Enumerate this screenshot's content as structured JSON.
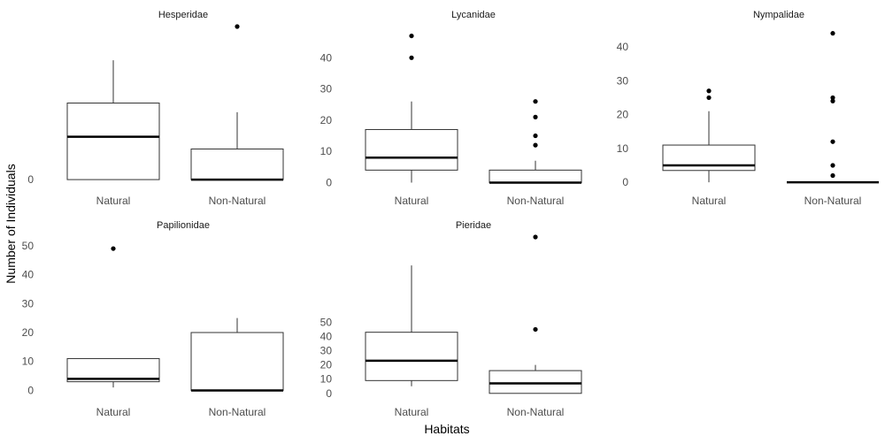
{
  "chart_data": {
    "type": "boxplot",
    "xlabel": "Habitats",
    "ylabel": "Number of Individuals",
    "panels": [
      {
        "title": "Hesperidae",
        "yticks": [
          0
        ],
        "ylim": [
          -2,
          50
        ],
        "categories": [
          "Natural",
          "Non-Natural"
        ],
        "boxes": [
          {
            "category": "Natural",
            "lower_whisker": 0,
            "q1": 0,
            "median": 14,
            "q3": 25,
            "upper_whisker": 39,
            "outliers": []
          },
          {
            "category": "Non-Natural",
            "lower_whisker": 0,
            "q1": 0,
            "median": 0,
            "q3": 10,
            "upper_whisker": 22,
            "outliers": [
              50
            ]
          }
        ]
      },
      {
        "title": "Lycanidae",
        "yticks": [
          0,
          10,
          20,
          30,
          40
        ],
        "ylim": [
          -1,
          50
        ],
        "categories": [
          "Natural",
          "Non-Natural"
        ],
        "boxes": [
          {
            "category": "Natural",
            "lower_whisker": 0,
            "q1": 4,
            "median": 8,
            "q3": 17,
            "upper_whisker": 26,
            "outliers": [
              40,
              47
            ]
          },
          {
            "category": "Non-Natural",
            "lower_whisker": 0,
            "q1": 0,
            "median": 0,
            "q3": 4,
            "upper_whisker": 7,
            "outliers": [
              12,
              15,
              21,
              26
            ]
          }
        ]
      },
      {
        "title": "Nympalidae",
        "yticks": [
          0,
          10,
          20,
          30,
          40
        ],
        "ylim": [
          -1,
          46
        ],
        "categories": [
          "Natural",
          "Non-Natural"
        ],
        "boxes": [
          {
            "category": "Natural",
            "lower_whisker": 0,
            "q1": 3.5,
            "median": 5,
            "q3": 11,
            "upper_whisker": 21,
            "outliers": [
              25,
              27
            ]
          },
          {
            "category": "Non-Natural",
            "lower_whisker": 0,
            "q1": 0,
            "median": 0,
            "q3": 0,
            "upper_whisker": 0,
            "outliers": [
              2,
              5,
              12,
              24,
              25,
              44
            ]
          }
        ]
      },
      {
        "title": "Papilionidae",
        "yticks": [
          0,
          10,
          20,
          30,
          40,
          50
        ],
        "ylim": [
          -2,
          53
        ],
        "categories": [
          "Natural",
          "Non-Natural"
        ],
        "boxes": [
          {
            "category": "Natural",
            "lower_whisker": 1,
            "q1": 3,
            "median": 4,
            "q3": 11,
            "upper_whisker": 11,
            "outliers": [
              49
            ]
          },
          {
            "category": "Non-Natural",
            "lower_whisker": 0,
            "q1": 0,
            "median": 0,
            "q3": 20,
            "upper_whisker": 25,
            "outliers": []
          }
        ]
      },
      {
        "title": "Pieridae",
        "yticks": [
          0,
          10,
          20,
          30,
          40,
          50
        ],
        "ylim": [
          -2,
          110
        ],
        "categories": [
          "Natural",
          "Non-Natural"
        ],
        "boxes": [
          {
            "category": "Natural",
            "lower_whisker": 5,
            "q1": 9,
            "median": 23,
            "q3": 43,
            "upper_whisker": 90,
            "outliers": []
          },
          {
            "category": "Non-Natural",
            "lower_whisker": 0,
            "q1": 0,
            "median": 7,
            "q3": 16,
            "upper_whisker": 20,
            "outliers": [
              45,
              110
            ]
          }
        ]
      }
    ]
  }
}
